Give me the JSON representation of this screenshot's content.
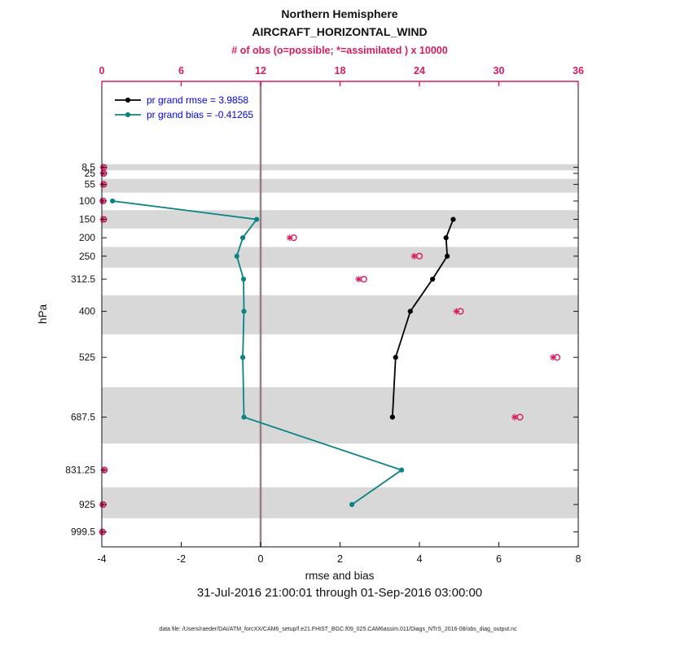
{
  "colors": {
    "obs_axis": "#d81b60",
    "legend_text": "#0000ee",
    "shading": "#d8d8d8",
    "zero_line": "#8a7878",
    "rmse": "#000000",
    "bias": "#0b8383"
  },
  "legend": {
    "items": [
      {
        "label": "pr grand rmse = 3.9858",
        "color": "#000000"
      },
      {
        "label": "pr grand bias = -0.41265",
        "color": "#0b8383"
      }
    ]
  },
  "notes": {
    "timespan": "31-Jul-2016 21:00:01 through 01-Sep-2016 03:00:00",
    "datafile": "data file: /Users/raeder/DAI/ATM_forcXX/CAM6_setup/f.e21.FHIST_BGC.f09_025.CAM6assim.011/Diags_NTrS_2016-08/obs_diag_output.nc"
  },
  "chart_data": {
    "type": "line",
    "title": "Northern Hemisphere",
    "subtitle": "AIRCRAFT_HORIZONTAL_WIND",
    "x_axis_bottom": {
      "label": "rmse and bias",
      "min": -4,
      "max": 8,
      "ticks": [
        -4,
        -2,
        0,
        2,
        4,
        6,
        8
      ]
    },
    "x_axis_top": {
      "label": "# of obs (o=possible; *=assimilated ) x 10000",
      "min": 0,
      "max": 36,
      "ticks": [
        0,
        6,
        12,
        18,
        24,
        30,
        36
      ],
      "units_scale": "x 10000"
    },
    "y_axis": {
      "label": "hPa",
      "direction": "increasing-down",
      "levels": [
        8.5,
        25,
        55,
        100,
        150,
        200,
        250,
        312.5,
        400,
        525,
        687.5,
        831.25,
        925,
        999.5
      ],
      "ylim": [
        -225,
        1040
      ]
    },
    "shaded_levels": [
      8.5,
      55,
      150,
      250,
      400,
      687.5,
      925
    ],
    "zero_line": 0,
    "series": [
      {
        "name": "bias",
        "role": "profile",
        "axis": "bottom",
        "color": "#0b8383",
        "marker": "filled-circle",
        "grand_value": -0.41265,
        "points": [
          {
            "level": 100,
            "value": -3.73
          },
          {
            "level": 150,
            "value": -0.1
          },
          {
            "level": 200,
            "value": -0.45
          },
          {
            "level": 250,
            "value": -0.6
          },
          {
            "level": 312.5,
            "value": -0.43
          },
          {
            "level": 400,
            "value": -0.42
          },
          {
            "level": 525,
            "value": -0.45
          },
          {
            "level": 687.5,
            "value": -0.42
          },
          {
            "level": 831.25,
            "value": 3.55
          },
          {
            "level": 925,
            "value": 2.3
          }
        ]
      },
      {
        "name": "rmse",
        "role": "profile",
        "axis": "bottom",
        "color": "#000000",
        "marker": "filled-circle",
        "grand_value": 3.9858,
        "points": [
          {
            "level": 150,
            "value": 4.85
          },
          {
            "level": 200,
            "value": 4.67
          },
          {
            "level": 250,
            "value": 4.7
          },
          {
            "level": 312.5,
            "value": 4.33
          },
          {
            "level": 400,
            "value": 3.77
          },
          {
            "level": 525,
            "value": 3.4
          },
          {
            "level": 687.5,
            "value": 3.32
          }
        ]
      },
      {
        "name": "possible-obs",
        "role": "obs_count",
        "axis": "top",
        "color": "#d81b60",
        "marker": "o",
        "points": [
          {
            "level": 8.5,
            "value": 0.15
          },
          {
            "level": 25,
            "value": 0.15
          },
          {
            "level": 55,
            "value": 0.15
          },
          {
            "level": 100,
            "value": 0.1
          },
          {
            "level": 150,
            "value": 0.15
          },
          {
            "level": 200,
            "value": 14.5
          },
          {
            "level": 250,
            "value": 24.0
          },
          {
            "level": 312.5,
            "value": 19.8
          },
          {
            "level": 400,
            "value": 27.1
          },
          {
            "level": 525,
            "value": 34.4
          },
          {
            "level": 687.5,
            "value": 31.6
          },
          {
            "level": 831.25,
            "value": 0.2
          },
          {
            "level": 925,
            "value": 0.1
          },
          {
            "level": 999.5,
            "value": 0.05
          }
        ]
      },
      {
        "name": "assimilated-obs",
        "role": "obs_count",
        "axis": "top",
        "color": "#d81b60",
        "marker": "*",
        "points": [
          {
            "level": 8.5,
            "value": 0.1
          },
          {
            "level": 25,
            "value": 0.1
          },
          {
            "level": 55,
            "value": 0.1
          },
          {
            "level": 100,
            "value": 0.05
          },
          {
            "level": 150,
            "value": 0.1
          },
          {
            "level": 200,
            "value": 14.2
          },
          {
            "level": 250,
            "value": 23.6
          },
          {
            "level": 312.5,
            "value": 19.4
          },
          {
            "level": 400,
            "value": 26.8
          },
          {
            "level": 525,
            "value": 34.1
          },
          {
            "level": 687.5,
            "value": 31.2
          },
          {
            "level": 831.25,
            "value": 0.15
          },
          {
            "level": 925,
            "value": 0.05
          },
          {
            "level": 999.5,
            "value": 0.03
          }
        ]
      }
    ]
  }
}
